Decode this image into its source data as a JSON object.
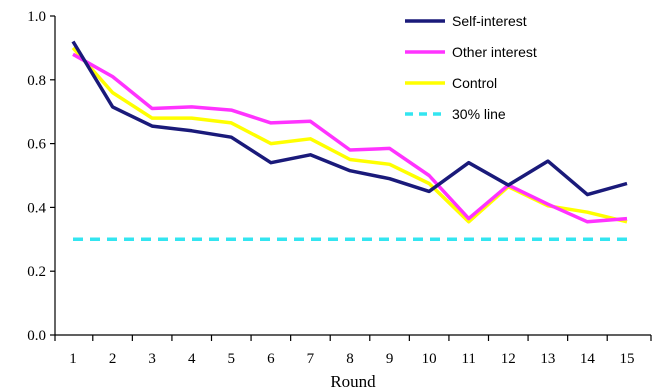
{
  "chart_data": {
    "type": "line",
    "xlabel": "Round",
    "ylabel": "",
    "x": [
      1,
      2,
      3,
      4,
      5,
      6,
      7,
      8,
      9,
      10,
      11,
      12,
      13,
      14,
      15
    ],
    "x_tick_labels": [
      "1",
      "2",
      "3",
      "4",
      "5",
      "6",
      "7",
      "8",
      "9",
      "10",
      "11",
      "12",
      "13",
      "14",
      "15"
    ],
    "ylim": [
      0,
      1
    ],
    "y_ticks": [
      0.0,
      0.2,
      0.4,
      0.6,
      0.8,
      1.0
    ],
    "y_tick_labels": [
      "0.0",
      "0.2",
      "0.4",
      "0.6",
      "0.8",
      "1.0"
    ],
    "grid": false,
    "legend_position": "top-right",
    "series": [
      {
        "name": "Self-interest",
        "color": "#1a1a7a",
        "dashed": false,
        "values": [
          0.92,
          0.715,
          0.655,
          0.64,
          0.62,
          0.54,
          0.565,
          0.515,
          0.49,
          0.45,
          0.54,
          0.47,
          0.545,
          0.44,
          0.475
        ]
      },
      {
        "name": "Other interest",
        "color": "#ff33ff",
        "dashed": false,
        "values": [
          0.88,
          0.81,
          0.71,
          0.715,
          0.705,
          0.665,
          0.67,
          0.58,
          0.585,
          0.5,
          0.365,
          0.47,
          0.41,
          0.355,
          0.365
        ]
      },
      {
        "name": "Control",
        "color": "#ffff00",
        "dashed": false,
        "values": [
          0.9,
          0.76,
          0.68,
          0.68,
          0.665,
          0.6,
          0.615,
          0.55,
          0.535,
          0.475,
          0.355,
          0.465,
          0.405,
          0.385,
          0.355
        ]
      },
      {
        "name": "30% line",
        "color": "#33e5f0",
        "dashed": true,
        "values": [
          0.3,
          0.3,
          0.3,
          0.3,
          0.3,
          0.3,
          0.3,
          0.3,
          0.3,
          0.3,
          0.3,
          0.3,
          0.3,
          0.3,
          0.3
        ]
      }
    ]
  }
}
